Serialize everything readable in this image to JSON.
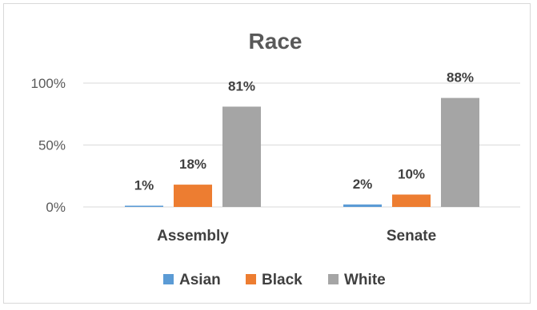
{
  "chart_data": {
    "type": "bar",
    "title": "Race",
    "categories": [
      "Assembly",
      "Senate"
    ],
    "series": [
      {
        "name": "Asian",
        "color": "#5b9bd5",
        "values": [
          1,
          2
        ],
        "labels": [
          "1%",
          "2%"
        ]
      },
      {
        "name": "Black",
        "color": "#ed7d31",
        "values": [
          18,
          10
        ],
        "labels": [
          "18%",
          "10%"
        ]
      },
      {
        "name": "White",
        "color": "#a5a5a5",
        "values": [
          81,
          88
        ],
        "labels": [
          "81%",
          "88%"
        ]
      }
    ],
    "y_ticks": [
      {
        "value": 0,
        "label": "0%"
      },
      {
        "value": 50,
        "label": "50%"
      },
      {
        "value": 100,
        "label": "100%"
      }
    ],
    "ylim": [
      0,
      100
    ],
    "grid": "horizontal",
    "legend_position": "bottom"
  }
}
